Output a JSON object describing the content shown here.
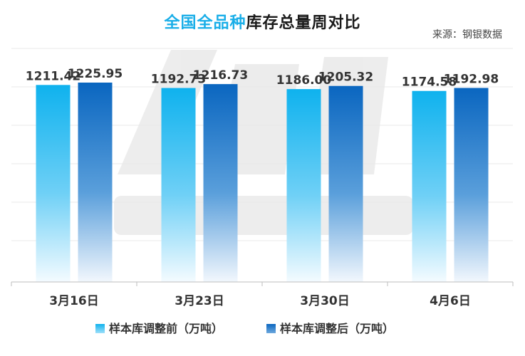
{
  "title": {
    "part1": "全国全品种",
    "part2": "库存总量周对比"
  },
  "source": "来源：钢银数据",
  "chart_data": {
    "type": "bar",
    "categories": [
      "3月16日",
      "3月23日",
      "3月30日",
      "4月6日"
    ],
    "series": [
      {
        "name": "样本库调整前（万吨）",
        "values": [
          1211.42,
          1192.73,
          1186.0,
          1174.58
        ],
        "color": "#13b5ef"
      },
      {
        "name": "样本库调整后（万吨）",
        "values": [
          1225.95,
          1216.73,
          1205.32,
          1192.98
        ],
        "color": "#0d6ec4"
      }
    ],
    "legend_position": "bottom",
    "grid": true
  }
}
